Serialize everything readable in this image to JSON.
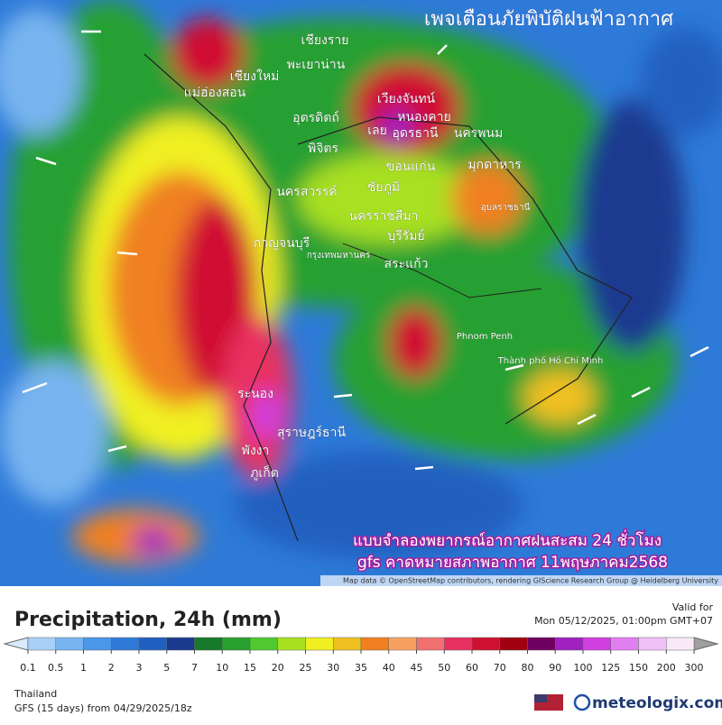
{
  "map": {
    "title": "เพจเตือนภัยพิบัติฝนฟ้าอากาศ",
    "place_labels": [
      "เชียงราย",
      "พะเยาน่าน",
      "เชียงใหม่",
      "แม่ฮ่องสอน",
      "เวียงจันทน์",
      "หนองคาย",
      "อุดรธานี",
      "นครพนม",
      "อุตรดิตถ์",
      "เลย",
      "พิจิตร",
      "ชัยภูมิ",
      "ขอนแก่น",
      "มุกดาหาร",
      "นครสวรรค์",
      "นครราชสีมา",
      "บุรีรัมย์",
      "อุบลราชธานี",
      "กาญจนบุรี",
      "กรุงเทพมหานคร",
      "สระแก้ว",
      "Phnom Penh",
      "Thành phố Hồ Chí Minh",
      "ระนอง",
      "สุราษฎร์ธานี",
      "พังงา",
      "ภูเก็ต"
    ],
    "overlay_lines": [
      "แบบจำลองพยากรณ์อากาศฝนสะสม 24 ชั่วโมง",
      "gfs คาดหมายสภาพอากาศ 11พฤษภาคม2568"
    ],
    "attribution": "Map data © OpenStreetMap contributors, rendering GIScience Research Group @ Heidelberg University"
  },
  "footer": {
    "title": "Precipitation, 24h (mm)",
    "valid_label": "Valid for",
    "valid_time": "Mon 05/12/2025, 01:00pm GMT+07",
    "region": "Thailand",
    "model": "GFS (15 days) from 04/29/2025/18z",
    "brand": "meteologix.com"
  },
  "legend": {
    "values": [
      0.1,
      0.5,
      1,
      2,
      3,
      5,
      7,
      10,
      15,
      20,
      25,
      30,
      35,
      40,
      45,
      50,
      60,
      70,
      80,
      90,
      100,
      125,
      150,
      200,
      300
    ],
    "bin_colors": [
      "#a8d0f8",
      "#78b4f0",
      "#4a96e8",
      "#2e7ad8",
      "#2060c0",
      "#1a3a90",
      "#167a2a",
      "#28a030",
      "#50c830",
      "#a8e020",
      "#f0f020",
      "#f0c020",
      "#f08020",
      "#f8a060",
      "#f07070",
      "#e83060",
      "#d01030",
      "#a00010",
      "#700060",
      "#a020c0",
      "#d040e0",
      "#e080f0",
      "#f0c0f8",
      "#f8e8f8"
    ],
    "low_color": "#d8ecff",
    "high_color": "#a0a0a0"
  }
}
